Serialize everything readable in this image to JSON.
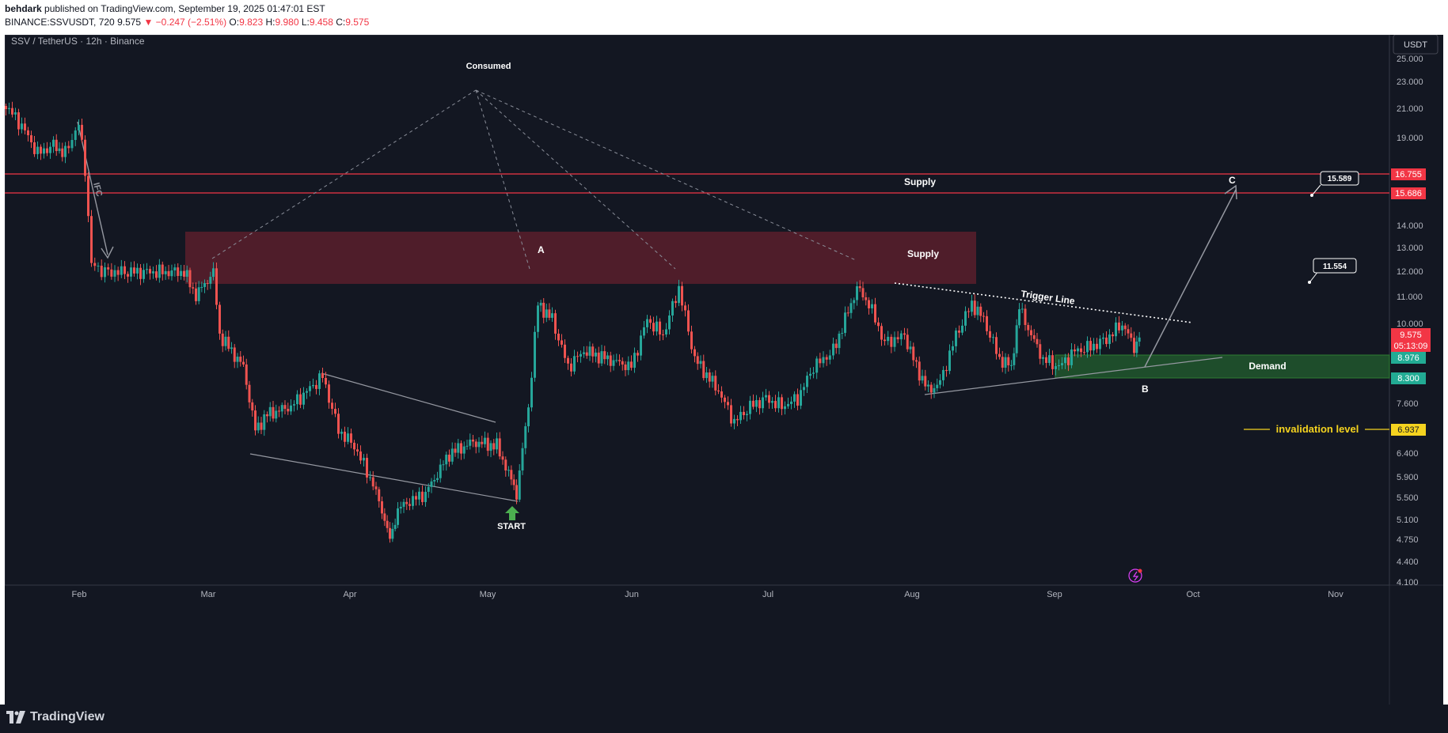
{
  "header": {
    "publisher": "behdark",
    "published_text": "published on TradingView.com, September 19, 2025 01:47:01 EST",
    "symbol": "BINANCE:SSVUSDT, 720",
    "last": "9.575",
    "change": "−0.247 (−2.51%)",
    "o_label": "O:",
    "o_val": "9.823",
    "h_label": "H:",
    "h_val": "9.980",
    "l_label": "L:",
    "l_val": "9.458",
    "c_label": "C:",
    "c_val": "9.575"
  },
  "chart": {
    "legend": "SSV / TetherUS · 12h · Binance",
    "currency_button": "USDT",
    "price_labels": [
      "25.000",
      "23.000",
      "21.000",
      "19.000",
      "17.000",
      "14.000",
      "13.000",
      "12.000",
      "11.000",
      "10.000",
      "7.600",
      "6.400",
      "5.900",
      "5.500",
      "5.100",
      "4.750",
      "4.400",
      "4.100"
    ],
    "badges": {
      "supply_top": "16.755",
      "supply_bottom": "15.686",
      "current_price": "9.575",
      "countdown": "05:13:09",
      "demand_top": "8.976",
      "demand_bottom": "8.300",
      "invalidation": "6.937"
    },
    "time_labels": [
      "Feb",
      "Mar",
      "Apr",
      "May",
      "Jun",
      "Jul",
      "Aug",
      "Sep",
      "Oct",
      "Nov"
    ],
    "annotations": {
      "consumed": "Consumed",
      "supply_upper": "Supply",
      "supply_zone": "Supply",
      "demand_zone": "Demand",
      "trigger_line": "Trigger Line",
      "invalidation": "invalidation level",
      "start": "START",
      "ifc": "IFC",
      "point_a": "A",
      "point_b": "B",
      "point_c": "C",
      "target_1": "15.589",
      "target_2": "11.554"
    },
    "colors": {
      "background": "#131722",
      "up": "#26a69a",
      "down": "#ef5350",
      "supply_zone": "#5a1f2c",
      "demand_zone": "#1e4d2b",
      "invalidation": "#f5d31f"
    }
  },
  "footer": {
    "brand": "TradingView"
  }
}
